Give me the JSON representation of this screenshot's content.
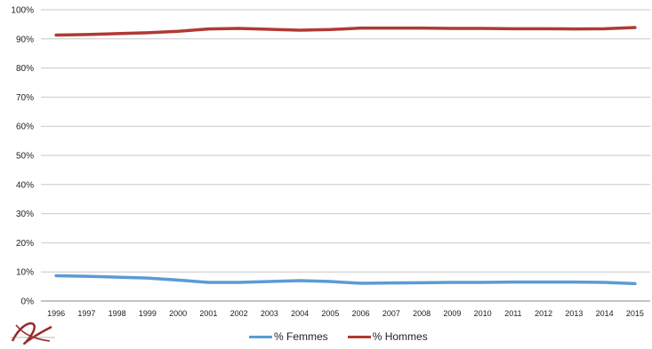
{
  "chart_data": {
    "type": "line",
    "x": [
      "1996",
      "1997",
      "1998",
      "1999",
      "2000",
      "2001",
      "2002",
      "2003",
      "2004",
      "2005",
      "2006",
      "2007",
      "2008",
      "2009",
      "2010",
      "2011",
      "2012",
      "2013",
      "2014",
      "2015"
    ],
    "series": [
      {
        "name": "% Femmes",
        "color": "#5b9bd5",
        "values": [
          8.7,
          8.5,
          8.2,
          7.9,
          7.2,
          6.4,
          6.4,
          6.7,
          7.0,
          6.7,
          6.1,
          6.2,
          6.3,
          6.4,
          6.4,
          6.5,
          6.5,
          6.5,
          6.4,
          6.0
        ]
      },
      {
        "name": "% Hommes",
        "color": "#b03a33",
        "values": [
          91.3,
          91.5,
          91.8,
          92.1,
          92.6,
          93.4,
          93.6,
          93.3,
          93.0,
          93.2,
          93.7,
          93.7,
          93.7,
          93.6,
          93.6,
          93.5,
          93.5,
          93.4,
          93.5,
          93.9
        ]
      }
    ],
    "ylim": [
      0,
      100
    ],
    "y_ticks": [
      "0%",
      "10%",
      "20%",
      "30%",
      "40%",
      "50%",
      "60%",
      "70%",
      "80%",
      "90%",
      "100%"
    ],
    "grid": true,
    "legend_position": "bottom"
  }
}
